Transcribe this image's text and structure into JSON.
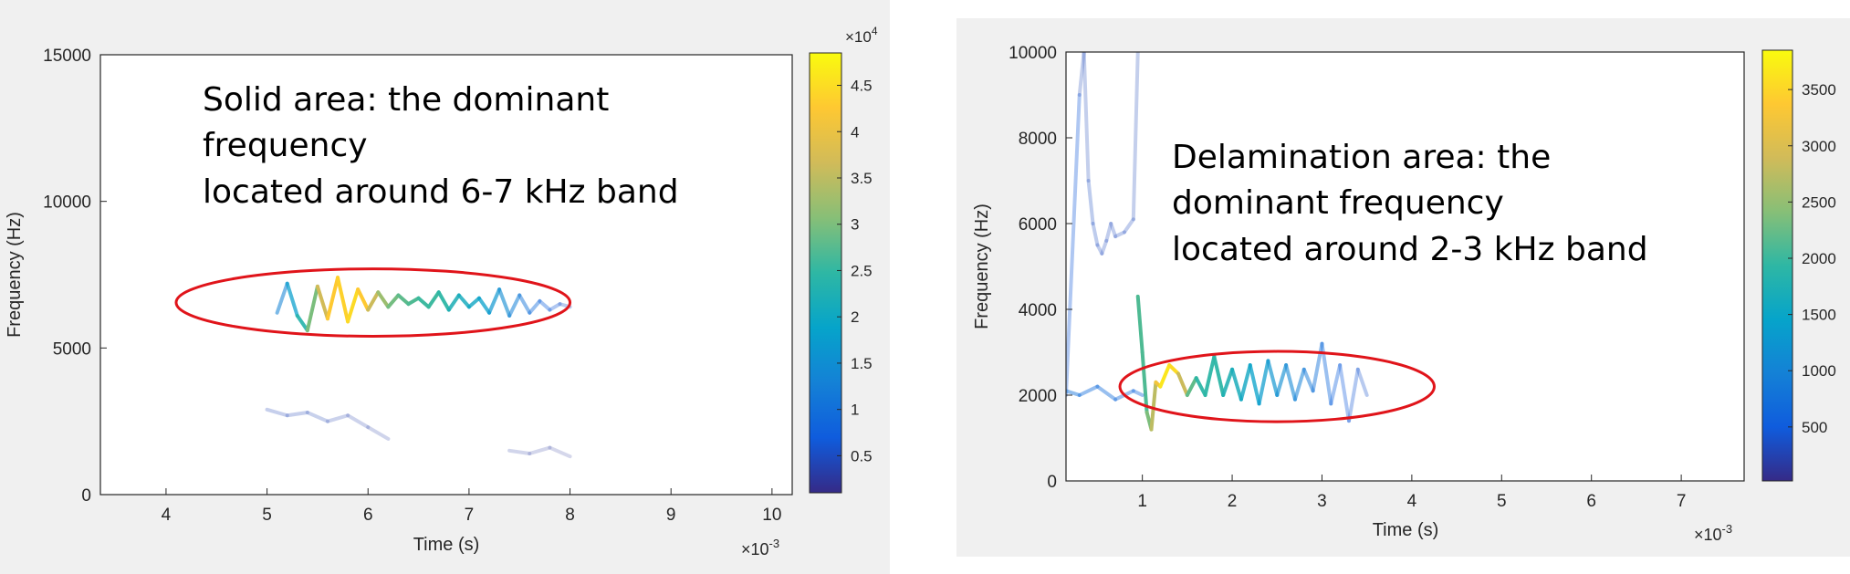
{
  "chart_data": [
    {
      "type": "heatmap",
      "subtype": "time-frequency ridge plot",
      "xlabel": "Time (s)",
      "ylabel": "Frequency (Hz)",
      "x_exponent_label": "×10",
      "x_exponent": "-3",
      "xlim": [
        3.35,
        10.2
      ],
      "ylim": [
        0,
        15000
      ],
      "x_ticks": [
        4,
        5,
        6,
        7,
        8,
        9,
        10
      ],
      "y_ticks": [
        0,
        5000,
        10000,
        15000
      ],
      "colorbar": {
        "exponent_label": "×10",
        "exponent": "4",
        "range": [
          0.1,
          4.85
        ],
        "ticks": [
          0.5,
          1,
          1.5,
          2,
          2.5,
          3,
          3.5,
          4,
          4.5
        ],
        "colormap": "parula"
      },
      "annotation_lines": [
        "Solid area: the dominant",
        "frequency",
        "located around 6-7 kHz band"
      ],
      "highlight": {
        "shape": "ellipse",
        "color": "#e0141a",
        "center": [
          6.05,
          6550
        ],
        "radii": [
          1.95,
          1150
        ]
      },
      "ridges": [
        {
          "t": [
            5.1,
            5.2,
            5.3,
            5.4,
            5.5,
            5.6,
            5.7,
            5.8,
            5.9,
            6.0,
            6.1,
            6.2,
            6.3,
            6.4,
            6.5,
            6.6,
            6.7,
            6.8,
            6.9,
            7.0,
            7.1,
            7.2,
            7.3,
            7.4,
            7.5,
            7.6,
            7.7,
            7.8,
            7.9,
            8.0
          ],
          "f": [
            6200,
            7200,
            6100,
            5600,
            7100,
            6000,
            7400,
            5900,
            7000,
            6300,
            6900,
            6400,
            6800,
            6500,
            6700,
            6400,
            6900,
            6300,
            6800,
            6400,
            6700,
            6200,
            7000,
            6100,
            6800,
            6200,
            6600,
            6300,
            6500,
            6400
          ],
          "magnitude": [
            1.0,
            1.5,
            2.0,
            2.6,
            3.3,
            4.0,
            4.5,
            4.2,
            4.7,
            3.8,
            3.4,
            3.0,
            2.8,
            2.7,
            2.6,
            2.4,
            2.6,
            2.2,
            2.1,
            2.0,
            1.9,
            1.7,
            1.5,
            1.3,
            1.1,
            0.9,
            0.8,
            0.6,
            0.5,
            0.4
          ]
        },
        {
          "t": [
            5.0,
            5.2,
            5.4,
            5.6,
            5.8,
            6.0,
            6.2
          ],
          "f": [
            2900,
            2700,
            2800,
            2500,
            2700,
            2300,
            1900
          ],
          "magnitude": [
            0.3,
            0.35,
            0.3,
            0.3,
            0.25,
            0.25,
            0.2
          ]
        },
        {
          "t": [
            7.4,
            7.6,
            7.8,
            8.0
          ],
          "f": [
            1500,
            1400,
            1600,
            1300
          ],
          "magnitude": [
            0.2,
            0.2,
            0.15,
            0.15
          ]
        }
      ]
    },
    {
      "type": "heatmap",
      "subtype": "time-frequency ridge plot",
      "xlabel": "Time (s)",
      "ylabel": "Frequency (Hz)",
      "x_exponent_label": "×10",
      "x_exponent": "-3",
      "xlim": [
        0.15,
        7.7
      ],
      "ylim": [
        0,
        10000
      ],
      "x_ticks": [
        1,
        2,
        3,
        4,
        5,
        6,
        7
      ],
      "y_ticks": [
        0,
        2000,
        4000,
        6000,
        8000,
        10000
      ],
      "colorbar": {
        "exponent_label": "",
        "exponent": "",
        "range": [
          20,
          3850
        ],
        "ticks": [
          500,
          1000,
          1500,
          2000,
          2500,
          3000,
          3500
        ],
        "colormap": "parula"
      },
      "annotation_lines": [
        "Delamination area: the",
        "dominant frequency",
        "located around 2-3 kHz band"
      ],
      "highlight": {
        "shape": "ellipse",
        "color": "#e0141a",
        "center": [
          2.5,
          2200
        ],
        "radii": [
          1.75,
          820
        ]
      },
      "ridges": [
        {
          "t": [
            0.15,
            0.3,
            0.35,
            0.4,
            0.45,
            0.5,
            0.55,
            0.6,
            0.65,
            0.7,
            0.8,
            0.9,
            0.95
          ],
          "f": [
            2000,
            9000,
            10000,
            7000,
            6000,
            5500,
            5300,
            5600,
            6000,
            5700,
            5800,
            6100,
            10000
          ],
          "magnitude": [
            600,
            300,
            250,
            300,
            350,
            300,
            300,
            300,
            300,
            300,
            300,
            300,
            250
          ]
        },
        {
          "t": [
            0.95,
            1.0,
            1.05,
            1.1,
            1.15,
            1.2,
            1.3,
            1.4,
            1.5,
            1.6,
            1.7,
            1.8,
            1.9,
            2.0,
            2.1,
            2.2,
            2.3,
            2.4,
            2.5,
            2.6,
            2.7,
            2.8,
            2.9,
            3.0,
            3.1,
            3.2,
            3.3,
            3.4,
            3.5
          ],
          "f": [
            4300,
            3000,
            1600,
            1200,
            2300,
            2200,
            2700,
            2500,
            2000,
            2400,
            2000,
            2900,
            2000,
            2600,
            1900,
            2700,
            1800,
            2800,
            2000,
            2700,
            1900,
            2600,
            2100,
            3200,
            1800,
            2700,
            1400,
            2600,
            2000
          ],
          "magnitude": [
            2200,
            2000,
            2200,
            2500,
            3000,
            3500,
            3800,
            3300,
            2400,
            2000,
            1800,
            2000,
            1800,
            1700,
            1600,
            1500,
            1400,
            1300,
            1200,
            1100,
            1000,
            900,
            800,
            700,
            600,
            500,
            450,
            400,
            350
          ]
        },
        {
          "t": [
            0.15,
            0.3,
            0.5,
            0.7,
            0.9,
            1.0
          ],
          "f": [
            2100,
            2000,
            2200,
            1900,
            2100,
            2000
          ],
          "magnitude": [
            800,
            700,
            700,
            650,
            600,
            600
          ]
        }
      ]
    }
  ]
}
